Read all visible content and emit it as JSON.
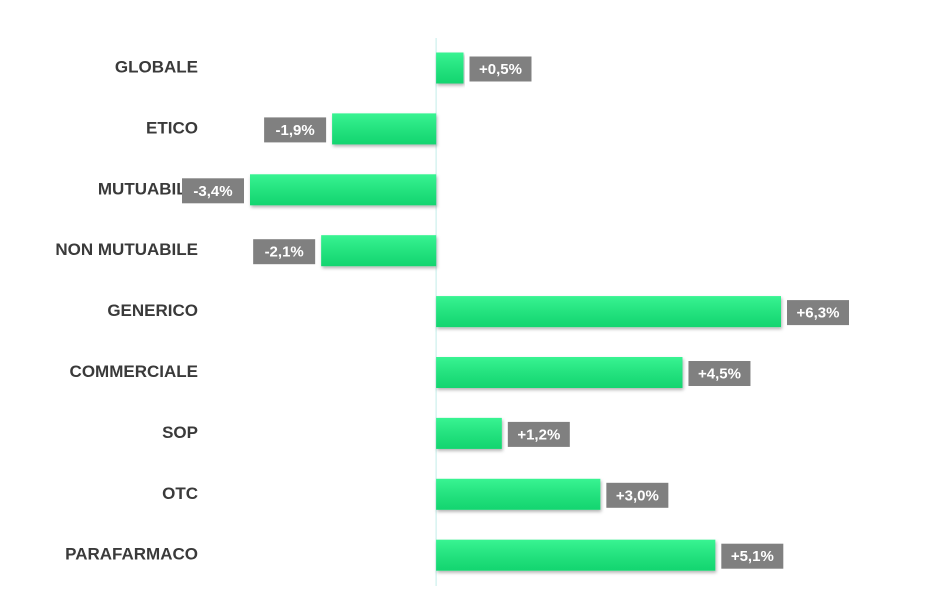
{
  "chart_data": {
    "type": "bar",
    "orientation": "horizontal",
    "categories": [
      "GLOBALE",
      "ETICO",
      "MUTUABILE",
      "NON MUTUABILE",
      "GENERICO",
      "COMMERCIALE",
      "SOP",
      "OTC",
      "PARAFARMACO"
    ],
    "values": [
      0.5,
      -1.9,
      -3.4,
      -2.1,
      6.3,
      4.5,
      1.2,
      3.0,
      5.1
    ],
    "value_labels": [
      "+0,5%",
      "-1,9%",
      "-3,4%",
      "-2,1%",
      "+6,3%",
      "+4,5%",
      "+1,2%",
      "+3,0%",
      "+5,1%"
    ],
    "color": "#12f27f"
  }
}
